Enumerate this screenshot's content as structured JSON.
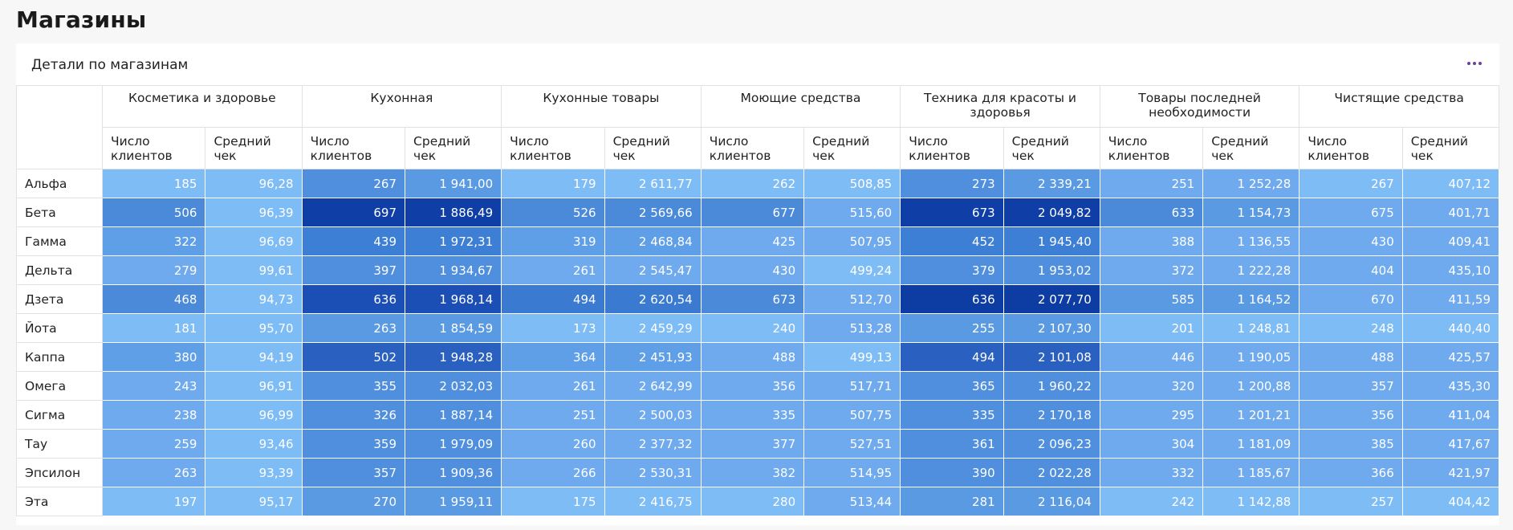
{
  "page": {
    "title": "Магазины"
  },
  "widget": {
    "title": "Детали по магазинам",
    "menu_icon": "more-dots-icon",
    "menu_color": "#6a3fa0"
  },
  "table": {
    "groups": [
      "Косметика и здоровье",
      "Кухонная",
      "Кухонные товары",
      "Моющие средства",
      "Техника для красоты и здоровья",
      "Товары последней необходимости",
      "Чистящие средства"
    ],
    "subheaders": [
      "Число клиентов",
      "Средний чек"
    ],
    "rows": [
      {
        "label": "Альфа",
        "values": [
          "185",
          "96,28",
          "267",
          "1 941,00",
          "179",
          "2 611,77",
          "262",
          "508,85",
          "273",
          "2 339,21",
          "251",
          "1 252,28",
          "267",
          "407,12"
        ]
      },
      {
        "label": "Бета",
        "values": [
          "506",
          "96,39",
          "697",
          "1 886,49",
          "526",
          "2 569,66",
          "677",
          "515,60",
          "673",
          "2 049,82",
          "633",
          "1 154,73",
          "675",
          "401,71"
        ]
      },
      {
        "label": "Гамма",
        "values": [
          "322",
          "96,69",
          "439",
          "1 972,31",
          "319",
          "2 468,84",
          "425",
          "507,95",
          "452",
          "1 945,40",
          "388",
          "1 136,55",
          "430",
          "409,41"
        ]
      },
      {
        "label": "Дельта",
        "values": [
          "279",
          "99,61",
          "397",
          "1 934,67",
          "261",
          "2 545,47",
          "430",
          "499,24",
          "379",
          "1 953,02",
          "372",
          "1 222,28",
          "404",
          "435,10"
        ]
      },
      {
        "label": "Дзета",
        "values": [
          "468",
          "94,73",
          "636",
          "1 968,14",
          "494",
          "2 620,54",
          "673",
          "512,70",
          "636",
          "2 077,70",
          "585",
          "1 164,52",
          "670",
          "411,59"
        ]
      },
      {
        "label": "Йота",
        "values": [
          "181",
          "95,70",
          "263",
          "1 854,59",
          "173",
          "2 459,29",
          "240",
          "513,28",
          "255",
          "2 107,30",
          "201",
          "1 248,81",
          "248",
          "440,40"
        ]
      },
      {
        "label": "Каппа",
        "values": [
          "380",
          "94,19",
          "502",
          "1 948,28",
          "364",
          "2 451,93",
          "488",
          "499,13",
          "494",
          "2 101,08",
          "446",
          "1 190,05",
          "488",
          "425,57"
        ]
      },
      {
        "label": "Омега",
        "values": [
          "243",
          "96,91",
          "355",
          "2 032,03",
          "261",
          "2 642,99",
          "356",
          "517,71",
          "365",
          "1 960,22",
          "320",
          "1 200,88",
          "357",
          "435,30"
        ]
      },
      {
        "label": "Сигма",
        "values": [
          "238",
          "96,99",
          "326",
          "1 887,14",
          "251",
          "2 500,03",
          "335",
          "507,75",
          "335",
          "2 170,18",
          "295",
          "1 201,21",
          "356",
          "411,04"
        ]
      },
      {
        "label": "Тау",
        "values": [
          "259",
          "93,46",
          "359",
          "1 979,09",
          "260",
          "2 377,32",
          "377",
          "527,51",
          "361",
          "2 096,23",
          "304",
          "1 181,09",
          "385",
          "417,67"
        ]
      },
      {
        "label": "Эпсилон",
        "values": [
          "263",
          "93,39",
          "357",
          "1 909,36",
          "266",
          "2 530,31",
          "382",
          "514,95",
          "390",
          "2 022,28",
          "332",
          "1 185,67",
          "366",
          "421,97"
        ]
      },
      {
        "label": "Эта",
        "values": [
          "197",
          "95,17",
          "270",
          "1 959,11",
          "175",
          "2 416,75",
          "280",
          "513,44",
          "281",
          "2 116,04",
          "242",
          "1 142,88",
          "257",
          "404,42"
        ]
      }
    ],
    "cell_colors": [
      [
        "#7ebcf6",
        "#7ebcf6",
        "#4f8fde",
        "#5a9ae3",
        "#7ebcf6",
        "#7ebcf6",
        "#7ebcf6",
        "#7ebcf6",
        "#4f8fde",
        "#5a9ae3",
        "#6eaaed",
        "#6eaaed",
        "#7ebcf6",
        "#7ebcf6"
      ],
      [
        "#4a8ad8",
        "#7ebcf6",
        "#0f3fa6",
        "#0f3fa6",
        "#4a8ad8",
        "#4a8ad8",
        "#4a8ad8",
        "#6eaaed",
        "#0f3fa6",
        "#0f3fa6",
        "#4a8ad8",
        "#5a9ae3",
        "#6eaaed",
        "#6eaaed"
      ],
      [
        "#5f9fe8",
        "#7ebcf6",
        "#3d7fd4",
        "#3d7fd4",
        "#5f9fe8",
        "#5f9fe8",
        "#6eaaed",
        "#6eaaed",
        "#3d7fd4",
        "#3d7fd4",
        "#6eaaed",
        "#6eaaed",
        "#6eaaed",
        "#6eaaed"
      ],
      [
        "#6eaaed",
        "#7ebcf6",
        "#4f8fde",
        "#4f8fde",
        "#6eaaed",
        "#6eaaed",
        "#6eaaed",
        "#7ebcf6",
        "#4f8fde",
        "#4f8fde",
        "#6eaaed",
        "#6eaaed",
        "#6eaaed",
        "#6eaaed"
      ],
      [
        "#4a8ad8",
        "#7ebcf6",
        "#1c4fb6",
        "#1c4fb6",
        "#3a7ad0",
        "#3a7ad0",
        "#4a8ad8",
        "#6eaaed",
        "#0d3da3",
        "#0d3da3",
        "#5a9ae3",
        "#5a9ae3",
        "#6eaaed",
        "#6eaaed"
      ],
      [
        "#7ebcf6",
        "#7ebcf6",
        "#5a9ae3",
        "#5a9ae3",
        "#7ebcf6",
        "#7ebcf6",
        "#7ebcf6",
        "#6eaaed",
        "#5a9ae3",
        "#5a9ae3",
        "#7ebcf6",
        "#7ebcf6",
        "#7ebcf6",
        "#7ebcf6"
      ],
      [
        "#5f9fe8",
        "#7ebcf6",
        "#2a60c0",
        "#2a60c0",
        "#5f9fe8",
        "#5f9fe8",
        "#6eaaed",
        "#7ebcf6",
        "#2a60c0",
        "#2a60c0",
        "#6eaaed",
        "#6eaaed",
        "#6eaaed",
        "#6eaaed"
      ],
      [
        "#6eaaed",
        "#7ebcf6",
        "#4f8fde",
        "#4f8fde",
        "#6eaaed",
        "#6eaaed",
        "#6eaaed",
        "#6eaaed",
        "#4f8fde",
        "#4f8fde",
        "#6eaaed",
        "#6eaaed",
        "#6eaaed",
        "#6eaaed"
      ],
      [
        "#6eaaed",
        "#7ebcf6",
        "#4f8fde",
        "#4f8fde",
        "#6eaaed",
        "#6eaaed",
        "#6eaaed",
        "#6eaaed",
        "#4f8fde",
        "#4f8fde",
        "#6eaaed",
        "#6eaaed",
        "#6eaaed",
        "#6eaaed"
      ],
      [
        "#6eaaed",
        "#7ebcf6",
        "#4f8fde",
        "#4f8fde",
        "#6eaaed",
        "#6eaaed",
        "#6eaaed",
        "#6eaaed",
        "#4f8fde",
        "#4f8fde",
        "#6eaaed",
        "#6eaaed",
        "#6eaaed",
        "#6eaaed"
      ],
      [
        "#6eaaed",
        "#7ebcf6",
        "#4f8fde",
        "#4f8fde",
        "#6eaaed",
        "#6eaaed",
        "#6eaaed",
        "#6eaaed",
        "#4f8fde",
        "#4f8fde",
        "#6eaaed",
        "#6eaaed",
        "#6eaaed",
        "#6eaaed"
      ],
      [
        "#7ebcf6",
        "#7ebcf6",
        "#5a9ae3",
        "#5a9ae3",
        "#7ebcf6",
        "#7ebcf6",
        "#7ebcf6",
        "#6eaaed",
        "#5a9ae3",
        "#5a9ae3",
        "#7ebcf6",
        "#7ebcf6",
        "#7ebcf6",
        "#7ebcf6"
      ]
    ]
  }
}
